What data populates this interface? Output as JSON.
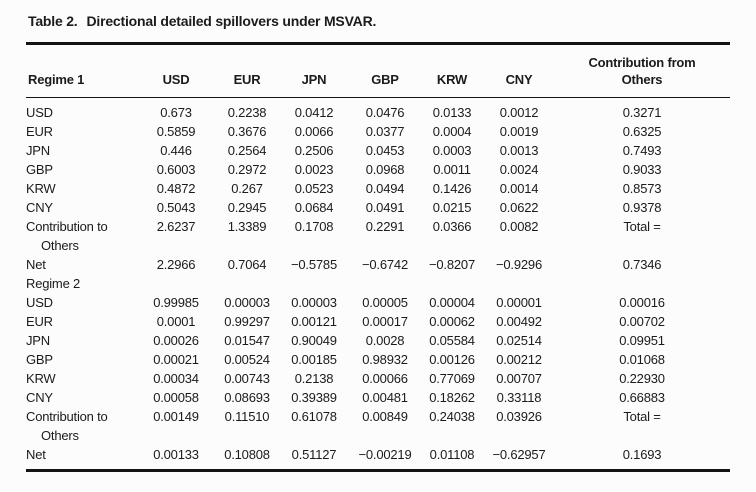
{
  "page": {
    "background": "#fcfcfc",
    "text_color": "#1b1b1b",
    "rule_color": "#141414"
  },
  "caption": {
    "label": "Table 2.",
    "title": "Directional detailed spillovers under MSVAR."
  },
  "table": {
    "header": {
      "regime_label": "Regime 1",
      "currencies": [
        "USD",
        "EUR",
        "JPN",
        "GBP",
        "KRW",
        "CNY"
      ],
      "last_col_line1": "Contribution from",
      "last_col_line2": "Others"
    },
    "rows": [
      {
        "label": "USD",
        "values": [
          "0.673",
          "0.2238",
          "0.0412",
          "0.0476",
          "0.0133",
          "0.0012",
          "0.3271"
        ]
      },
      {
        "label": "EUR",
        "values": [
          "0.5859",
          "0.3676",
          "0.0066",
          "0.0377",
          "0.0004",
          "0.0019",
          "0.6325"
        ]
      },
      {
        "label": "JPN",
        "values": [
          "0.446",
          "0.2564",
          "0.2506",
          "0.0453",
          "0.0003",
          "0.0013",
          "0.7493"
        ]
      },
      {
        "label": "GBP",
        "values": [
          "0.6003",
          "0.2972",
          "0.0023",
          "0.0968",
          "0.0011",
          "0.0024",
          "0.9033"
        ]
      },
      {
        "label": "KRW",
        "values": [
          "0.4872",
          "0.267",
          "0.0523",
          "0.0494",
          "0.1426",
          "0.0014",
          "0.8573"
        ]
      },
      {
        "label": "CNY",
        "values": [
          "0.5043",
          "0.2945",
          "0.0684",
          "0.0491",
          "0.0215",
          "0.0622",
          "0.9378"
        ]
      },
      {
        "label": "Contribution to Others",
        "values": [
          "2.6237",
          "1.3389",
          "0.1708",
          "0.2291",
          "0.0366",
          "0.0082",
          "Total ="
        ]
      },
      {
        "label": "Net",
        "values": [
          "2.2966",
          "0.7064",
          "−0.5785",
          "−0.6742",
          "−0.8207",
          "−0.9296",
          "0.7346"
        ]
      },
      {
        "label": "Regime 2",
        "values": [
          "",
          "",
          "",
          "",
          "",
          "",
          ""
        ]
      },
      {
        "label": "USD",
        "values": [
          "0.99985",
          "0.00003",
          "0.00003",
          "0.00005",
          "0.00004",
          "0.00001",
          "0.00016"
        ]
      },
      {
        "label": "EUR",
        "values": [
          "0.0001",
          "0.99297",
          "0.00121",
          "0.00017",
          "0.00062",
          "0.00492",
          "0.00702"
        ]
      },
      {
        "label": "JPN",
        "values": [
          "0.00026",
          "0.01547",
          "0.90049",
          "0.0028",
          "0.05584",
          "0.02514",
          "0.09951"
        ]
      },
      {
        "label": "GBP",
        "values": [
          "0.00021",
          "0.00524",
          "0.00185",
          "0.98932",
          "0.00126",
          "0.00212",
          "0.01068"
        ]
      },
      {
        "label": "KRW",
        "values": [
          "0.00034",
          "0.00743",
          "0.2138",
          "0.00066",
          "0.77069",
          "0.00707",
          "0.22930"
        ]
      },
      {
        "label": "CNY",
        "values": [
          "0.00058",
          "0.08693",
          "0.39389",
          "0.00481",
          "0.18262",
          "0.33118",
          "0.66883"
        ]
      },
      {
        "label": "Contribution to Others",
        "values": [
          "0.00149",
          "0.11510",
          "0.61078",
          "0.00849",
          "0.24038",
          "0.03926",
          "Total ="
        ]
      },
      {
        "label": "Net",
        "values": [
          "0.00133",
          "0.10808",
          "0.51127",
          "−0.00219",
          "0.01108",
          "−0.62957",
          "0.1693"
        ]
      }
    ]
  }
}
